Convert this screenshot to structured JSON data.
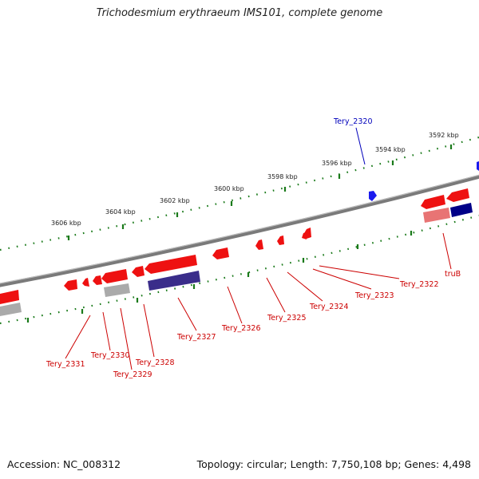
{
  "title": "Trichodesmium erythraeum IMS101, complete genome",
  "footer": {
    "accession": "Accession: NC_008312",
    "summary": "Topology: circular; Length: 7,750,108 bp; Genes: 4,498"
  },
  "colors": {
    "forward": "#ee1111",
    "reverse": "#dd1111",
    "highlight": "#0000cc",
    "rna": "#3a2d8a",
    "pseudo": "#aaaaaa",
    "backbone": "#888888",
    "ticks": "#1a7a1a",
    "label_red": "#cc0000",
    "label_blue": "#0000bb"
  },
  "scale_labels": [
    "3592 kbp",
    "3594 kbp",
    "3596 kbp",
    "3598 kbp",
    "3600 kbp",
    "3602 kbp",
    "3604 kbp",
    "3606 kbp"
  ],
  "genes": [
    {
      "name": "Tery_2320",
      "color": "blue"
    },
    {
      "name": "truB",
      "color": "red"
    },
    {
      "name": "Tery_2322",
      "color": "red"
    },
    {
      "name": "Tery_2323",
      "color": "red"
    },
    {
      "name": "Tery_2324",
      "color": "red"
    },
    {
      "name": "Tery_2325",
      "color": "red"
    },
    {
      "name": "Tery_2326",
      "color": "red"
    },
    {
      "name": "Tery_2327",
      "color": "red"
    },
    {
      "name": "Tery_2328",
      "color": "red"
    },
    {
      "name": "Tery_2329",
      "color": "red"
    },
    {
      "name": "Tery_2330",
      "color": "red"
    },
    {
      "name": "Tery_2331",
      "color": "red"
    }
  ]
}
